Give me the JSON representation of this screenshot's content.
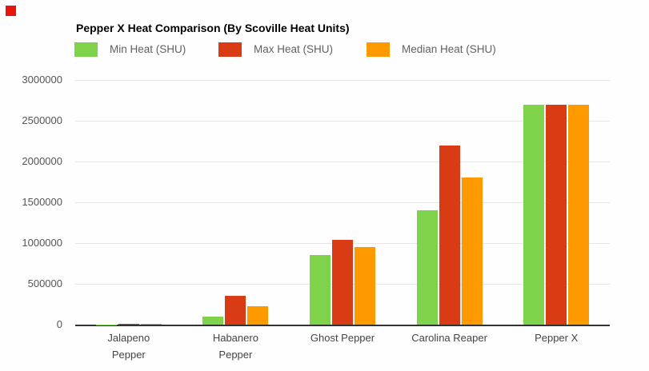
{
  "marker": {
    "color": "#e9150d"
  },
  "chart_data": {
    "type": "bar",
    "title": "Pepper X Heat Comparison (By Scoville Heat Units)",
    "categories": [
      "Jalapeno Pepper",
      "Habanero Pepper",
      "Ghost Pepper",
      "Carolina Reaper",
      "Pepper X"
    ],
    "categories_display": [
      [
        "Jalapeno",
        "Pepper"
      ],
      [
        "Habanero",
        "Pepper"
      ],
      [
        "Ghost Pepper"
      ],
      [
        "Carolina Reaper"
      ],
      [
        "Pepper X"
      ]
    ],
    "series": [
      {
        "name": "Min Heat (SHU)",
        "color": "#7ed34b",
        "values": [
          2500,
          100000,
          855000,
          1400000,
          2693000
        ]
      },
      {
        "name": "Max Heat (SHU)",
        "color": "#d93b15",
        "values": [
          8000,
          350000,
          1041427,
          2200000,
          2693000
        ]
      },
      {
        "name": "Median Heat (SHU)",
        "color": "#ff9900",
        "values": [
          5250,
          225000,
          948214,
          1800000,
          2693000
        ]
      }
    ],
    "xlabel": "",
    "ylabel": "",
    "ylim": [
      0,
      3000000
    ],
    "yticks": [
      0,
      500000,
      1000000,
      1500000,
      2000000,
      2500000,
      3000000
    ],
    "ytick_labels": [
      "0",
      "500000",
      "1000000",
      "1500000",
      "2000000",
      "2500000",
      "3000000"
    ],
    "grid": true,
    "legend_position": "top"
  },
  "colors": {
    "background": "#fefefe",
    "gridline": "#e6e6e6",
    "baseline": "#333333",
    "axis_text": "#555555",
    "category_text": "#444444",
    "legend_text": "#616161",
    "title_text": "#000000"
  }
}
